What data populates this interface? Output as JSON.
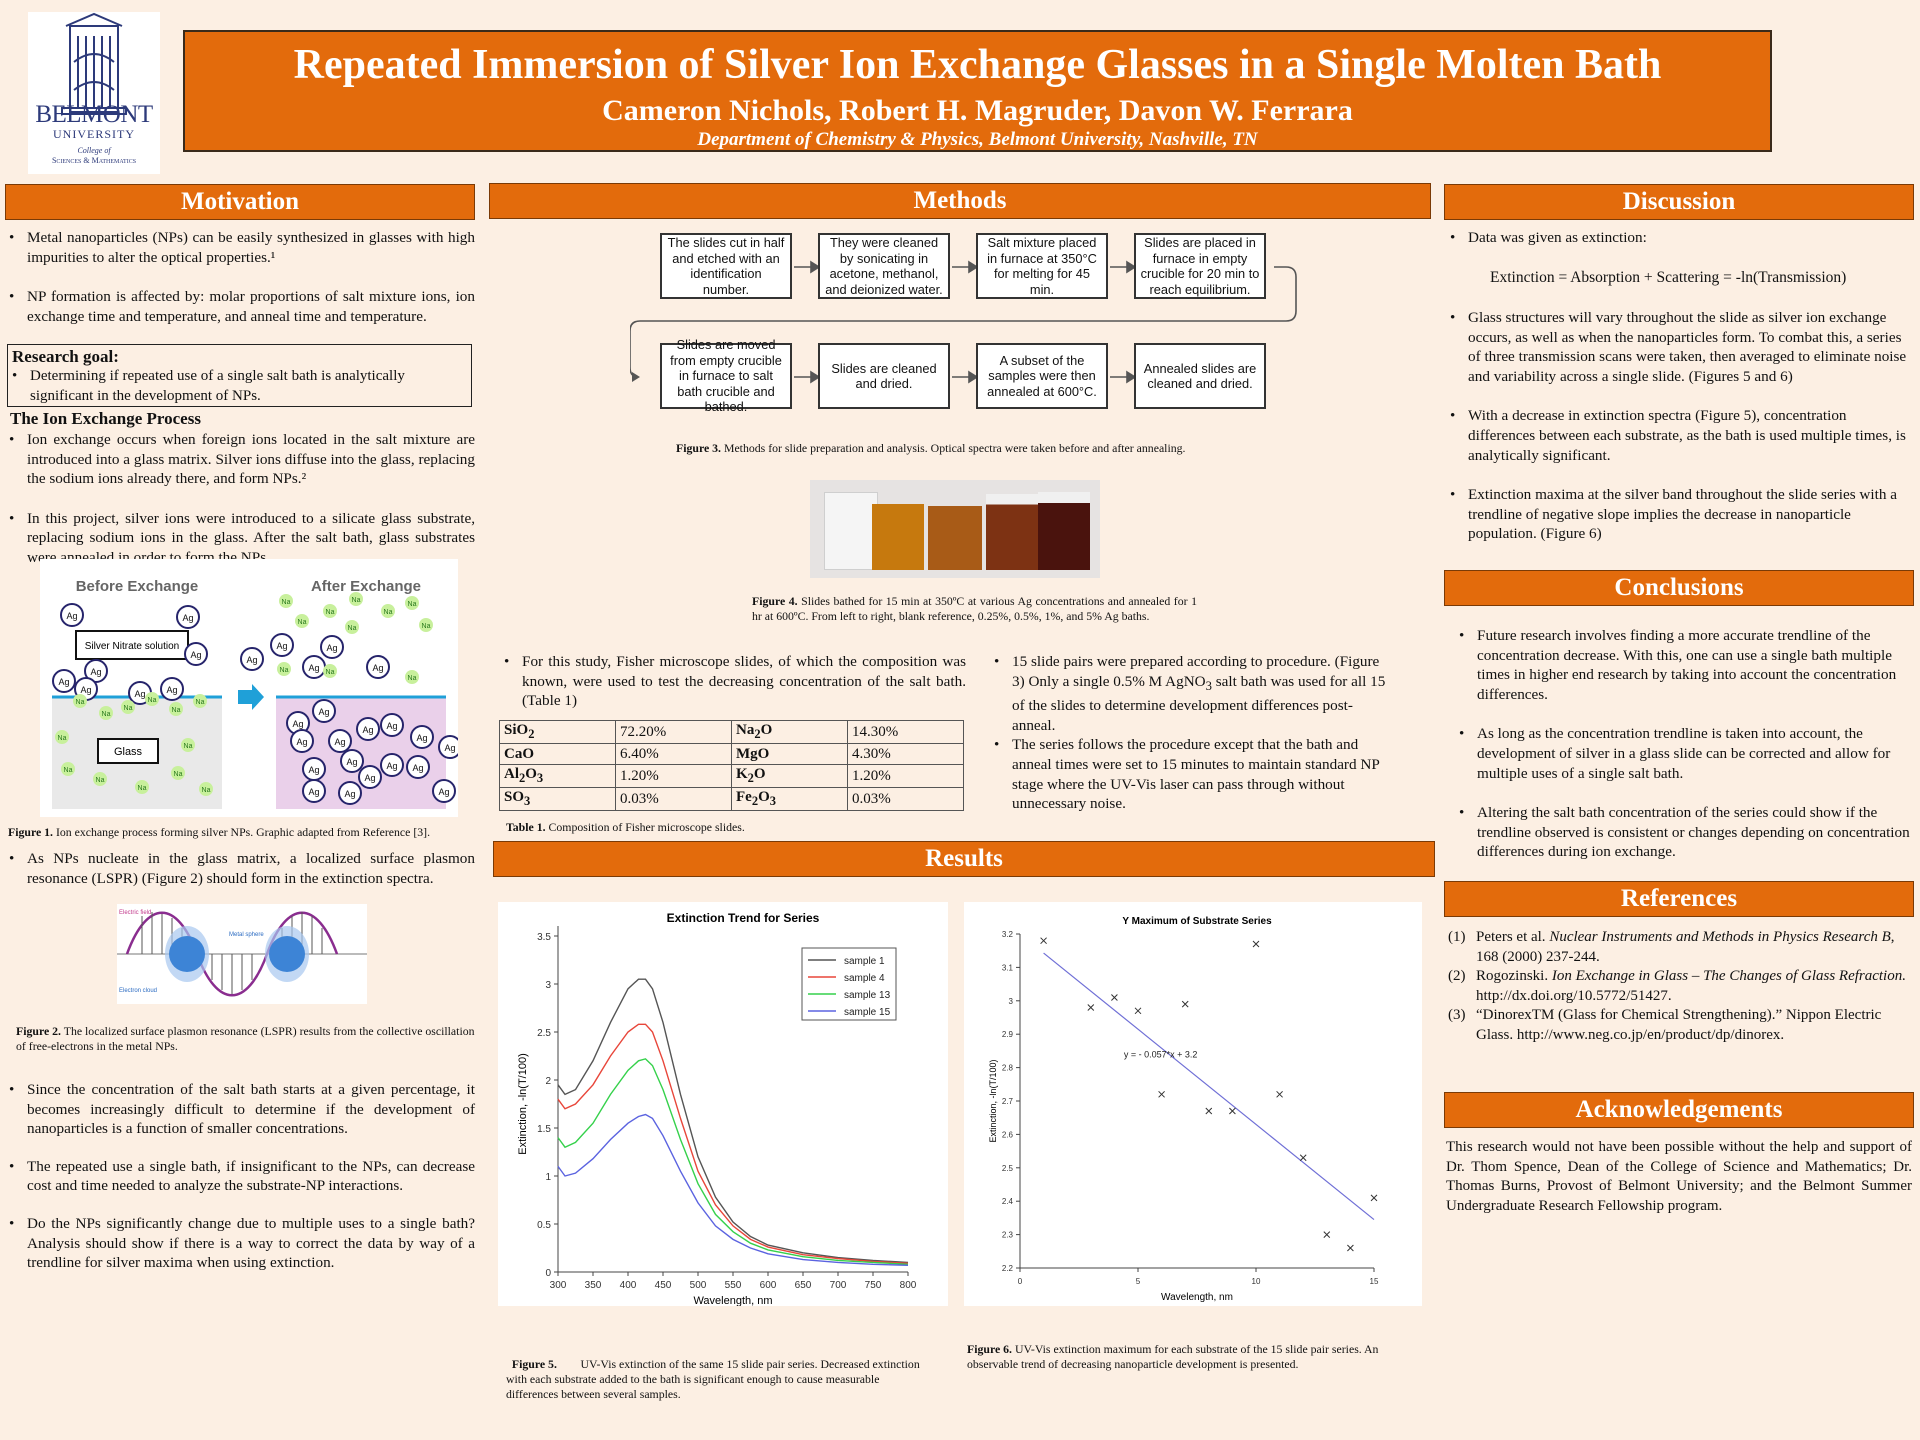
{
  "header": {
    "title": "Repeated Immersion of Silver Ion Exchange Glasses in a Single Molten Bath",
    "authors": "Cameron Nichols, Robert H. Magruder, Davon W. Ferrara",
    "affiliation": "Department of Chemistry & Physics, Belmont University, Nashville, TN"
  },
  "logo": {
    "line1": "BELMONT",
    "line2": "UNIVERSITY",
    "line3": "College of",
    "line4": "Sciences & Mathematics"
  },
  "motivation": {
    "title": "Motivation",
    "bullets": [
      "Metal nanoparticles (NPs) can be easily synthesized in glasses with high impurities to alter the optical properties.¹",
      "NP formation is affected by: molar proportions of salt mixture ions, ion exchange time and temperature, and anneal time and temperature."
    ],
    "goal_title": "Research goal:",
    "goal_text": "Determining if repeated use of a single salt bath is analytically significant in the development of NPs.",
    "ion_title": "The Ion Exchange Process",
    "ion_bullets": [
      "Ion exchange occurs when foreign ions located in the salt mixture are introduced into a glass matrix. Silver ions diffuse into the glass, replacing the sodium ions already there, and form NPs.²",
      "In this project, silver ions were introduced to a silicate glass substrate, replacing sodium ions in the glass. After the salt bath, glass substrates were annealed in order to form the NPs."
    ],
    "fig1": {
      "before": "Before Exchange",
      "after": "After Exchange",
      "solution": "Silver Nitrate solution",
      "glass": "Glass",
      "ag": "Ag",
      "na": "Na",
      "caption_bold": "Figure 1.",
      "caption": " Ion exchange process forming silver NPs. Graphic adapted from Reference [3]."
    },
    "lspr_bullet": "As NPs nucleate in the glass matrix, a localized surface plasmon resonance (LSPR) (Figure 2) should form in the extinction spectra.",
    "fig2": {
      "electric_field": "Electric field",
      "metal_sphere": "Metal sphere",
      "electron_cloud": "Electron cloud",
      "caption_bold": "Figure 2.",
      "caption": " The localized surface plasmon resonance (LSPR) results from the collective oscillation of free-electrons in the metal NPs."
    },
    "more_bullets": [
      "Since the concentration of the salt bath starts at a given percentage, it becomes increasingly difficult to determine if the development of nanoparticles is a function of smaller concentrations.",
      "The repeated use a single bath, if insignificant to the NPs, can decrease cost and time needed to analyze the substrate-NP interactions.",
      "Do the NPs significantly change due to multiple uses to a single bath? Analysis should show if there is a way to correct the data by way of a trendline for silver maxima when using extinction."
    ]
  },
  "methods": {
    "title": "Methods",
    "steps": [
      "The slides cut in half and etched with an identification number.",
      "They were cleaned by sonicating in acetone, methanol, and deionized water.",
      "Salt mixture placed in furnace at 350°C for melting for 45 min.",
      "Slides are placed in furnace in empty crucible for 20 min to reach equilibrium.",
      "Slides are moved from empty crucible in furnace to salt bath crucible and bathed.",
      "Slides are cleaned and dried.",
      "A subset of the samples were then annealed at 600°C.",
      "Annealed slides are cleaned and dried."
    ],
    "fig3_bold": "Figure 3.",
    "fig3": " Methods for slide preparation and analysis. Optical spectra were taken before and after annealing.",
    "fig4_bold": "Figure 4.",
    "fig4": " Slides bathed for 15 min at 350ºC at various Ag concentrations and annealed for 1 hr at 600ºC. From left to right, blank reference, 0.25%, 0.5%, 1%, and 5% Ag baths.",
    "slide_colors": [
      "#f4f4f4",
      "#c6790e",
      "#a85b17",
      "#7d3213",
      "#4a130d"
    ],
    "left_bullet": "For this study, Fisher microscope slides, of which the composition was known, were used to test the decreasing concentration of the salt bath. (Table 1)",
    "table": [
      [
        "SiO2",
        "72.20%",
        "Na2O",
        "14.30%"
      ],
      [
        "CaO",
        "6.40%",
        "MgO",
        "4.30%"
      ],
      [
        "Al2O3",
        "1.20%",
        "K2O",
        "1.20%"
      ],
      [
        "SO3",
        "0.03%",
        "Fe2O3",
        "0.03%"
      ]
    ],
    "table1_bold": "Table 1.",
    "table1": " Composition of Fisher microscope slides.",
    "right_bullets": [
      "15 slide pairs were prepared according to procedure. (Figure 3) Only a single 0.5% M AgNO3 salt bath was used for all 15 of the slides to determine development differences post-anneal.",
      "The series follows the procedure except that the bath and anneal times were set to 15 minutes to maintain standard NP stage where the UV-Vis laser can pass through without unnecessary noise."
    ]
  },
  "results": {
    "title": "Results",
    "fig5_bold": "Figure 5.",
    "fig5": "        UV-Vis extinction of the same 15 slide pair series. Decreased extinction with each substrate added to the bath is significant enough to cause measurable differences between several samples.",
    "fig6_bold": "Figure 6.",
    "fig6": " UV-Vis extinction maximum for each substrate of the 15 slide pair series. An observable trend of decreasing nanoparticle development is presented."
  },
  "chart_data": [
    {
      "type": "line",
      "title": "Extinction Trend for Series",
      "xlabel": "Wavelength, nm",
      "ylabel": "Extinction, -ln(T/100)",
      "xlim": [
        300,
        800
      ],
      "ylim": [
        0,
        3.5
      ],
      "xticks": [
        300,
        350,
        400,
        450,
        500,
        550,
        600,
        650,
        700,
        750,
        800
      ],
      "yticks": [
        0,
        0.5,
        1,
        1.5,
        2,
        2.5,
        3,
        3.5
      ],
      "legend": "top-right",
      "x": [
        300,
        310,
        325,
        350,
        375,
        400,
        415,
        425,
        435,
        450,
        475,
        500,
        525,
        550,
        575,
        600,
        650,
        700,
        750,
        800
      ],
      "series": [
        {
          "name": "sample 1",
          "color": "#555555",
          "values": [
            1.95,
            1.85,
            1.9,
            2.2,
            2.6,
            2.95,
            3.05,
            3.05,
            2.95,
            2.6,
            1.85,
            1.2,
            0.78,
            0.52,
            0.37,
            0.28,
            0.2,
            0.15,
            0.12,
            0.1
          ]
        },
        {
          "name": "sample 4",
          "color": "#e8463a",
          "values": [
            1.8,
            1.7,
            1.75,
            1.95,
            2.25,
            2.5,
            2.58,
            2.58,
            2.5,
            2.2,
            1.6,
            1.05,
            0.7,
            0.48,
            0.34,
            0.26,
            0.18,
            0.14,
            0.11,
            0.09
          ]
        },
        {
          "name": "sample 13",
          "color": "#35d14b",
          "values": [
            1.4,
            1.3,
            1.35,
            1.55,
            1.85,
            2.1,
            2.2,
            2.22,
            2.15,
            1.9,
            1.38,
            0.92,
            0.6,
            0.42,
            0.3,
            0.23,
            0.16,
            0.12,
            0.1,
            0.08
          ]
        },
        {
          "name": "sample 15",
          "color": "#5b63e0",
          "values": [
            1.1,
            1.0,
            1.03,
            1.18,
            1.38,
            1.55,
            1.62,
            1.64,
            1.6,
            1.42,
            1.05,
            0.72,
            0.48,
            0.34,
            0.25,
            0.19,
            0.13,
            0.1,
            0.08,
            0.07
          ]
        }
      ]
    },
    {
      "type": "scatter",
      "title": "Y Maximum of Substrate Series",
      "xlabel": "Wavelength, nm",
      "ylabel": "Extinction, -ln(T/100)",
      "xlim": [
        0,
        15
      ],
      "ylim": [
        2.2,
        3.2
      ],
      "xticks": [
        0,
        5,
        10,
        15
      ],
      "yticks": [
        2.2,
        2.3,
        2.4,
        2.5,
        2.6,
        2.7,
        2.8,
        2.9,
        3,
        3.1,
        3.2
      ],
      "annotation": "y = - 0.057*x + 3.2",
      "trendline": {
        "slope": -0.057,
        "intercept": 3.2
      },
      "x": [
        1,
        3,
        4,
        5,
        6,
        7,
        8,
        9,
        10,
        11,
        12,
        13,
        14,
        15
      ],
      "values": [
        3.18,
        2.98,
        3.01,
        2.97,
        2.72,
        2.99,
        2.67,
        2.67,
        3.17,
        2.72,
        2.53,
        2.3,
        2.26,
        2.41
      ]
    }
  ],
  "discussion": {
    "title": "Discussion",
    "intro": "Data was given as extinction:",
    "equation": "Extinction = Absorption + Scattering = -ln(Transmission)",
    "bullets": [
      "Glass structures will vary throughout the slide as silver ion exchange occurs, as well as when the nanoparticles form. To combat this, a series of three transmission scans were taken, then averaged to eliminate noise and variability across a single slide. (Figures 5 and 6)",
      "With a decrease in extinction spectra (Figure 5), concentration differences between each substrate, as the bath is used multiple times, is analytically significant.",
      "Extinction maxima at the silver band throughout the slide series with a trendline of negative slope implies the decrease in nanoparticle population. (Figure 6)"
    ]
  },
  "conclusions": {
    "title": "Conclusions",
    "bullets": [
      "Future research involves finding a more accurate trendline of the concentration decrease. With this, one can use a single bath multiple times in higher end research by taking into account the concentration differences.",
      "As long as the concentration trendline is taken into account, the development of silver in a glass slide can be corrected and allow for multiple uses of a single salt bath.",
      "Altering the salt bath concentration of the series could show if the trendline observed is consistent or changes depending on concentration differences during ion exchange."
    ]
  },
  "references": {
    "title": "References",
    "items": [
      {
        "n": "(1)",
        "pre": "Peters et al. ",
        "ital": "Nuclear Instruments and Methods in Physics Research B",
        "post": ", 168 (2000) 237-244."
      },
      {
        "n": "(2)",
        "pre": "Rogozinski. ",
        "ital": "Ion Exchange in Glass – The Changes of Glass Refraction.",
        "post": " http://dx.doi.org/10.5772/51427."
      },
      {
        "n": "(3)",
        "pre": "“DinorexTM (Glass for Chemical Strengthening).” Nippon Electric Glass. http://www.neg.co.jp/en/product/dp/dinorex.",
        "ital": "",
        "post": ""
      }
    ]
  },
  "acknowledgements": {
    "title": "Acknowledgements",
    "text": "This research would not have been possible without the help and support of Dr. Thom Spence, Dean of the College of Science and Mathematics; Dr. Thomas Burns, Provost of Belmont University; and the Belmont Summer Undergraduate Research Fellowship program."
  }
}
